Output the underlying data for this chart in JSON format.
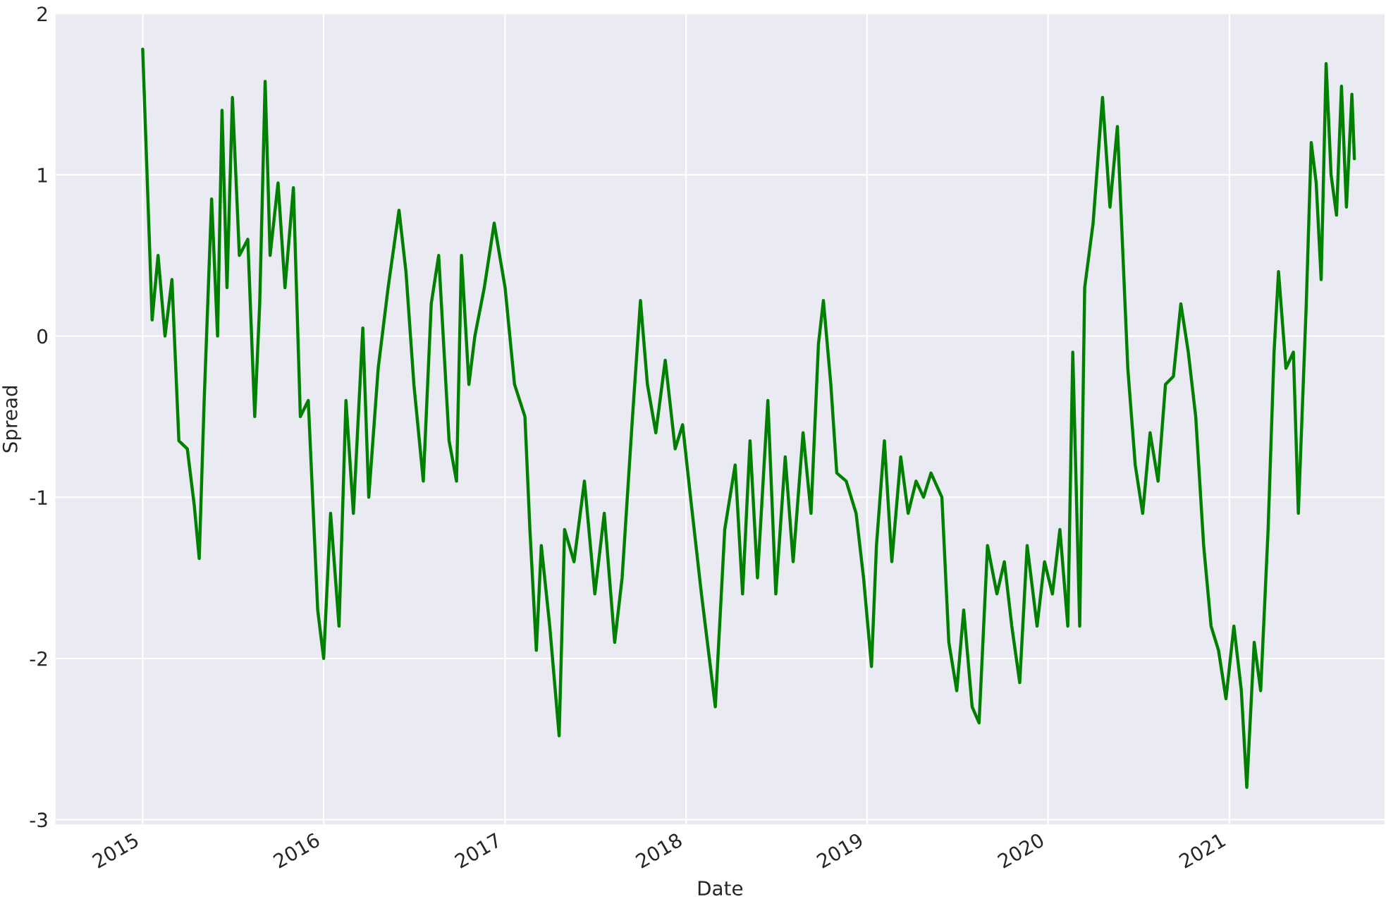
{
  "chart_data": {
    "type": "line",
    "xlabel": "Date",
    "ylabel": "Spread",
    "x": [
      "2015-01-01",
      "2015-01-20",
      "2015-02-01",
      "2015-02-15",
      "2015-03-01",
      "2015-03-15",
      "2015-04-01",
      "2015-04-15",
      "2015-04-25",
      "2015-05-05",
      "2015-05-20",
      "2015-06-01",
      "2015-06-10",
      "2015-06-20",
      "2015-07-01",
      "2015-07-15",
      "2015-08-01",
      "2015-08-15",
      "2015-08-25",
      "2015-09-05",
      "2015-09-15",
      "2015-10-01",
      "2015-10-15",
      "2015-11-01",
      "2015-11-15",
      "2015-12-01",
      "2015-12-20",
      "2016-01-01",
      "2016-01-15",
      "2016-02-01",
      "2016-02-15",
      "2016-03-01",
      "2016-03-20",
      "2016-04-01",
      "2016-04-20",
      "2016-05-10",
      "2016-06-01",
      "2016-06-15",
      "2016-07-01",
      "2016-07-20",
      "2016-08-05",
      "2016-08-20",
      "2016-09-10",
      "2016-09-25",
      "2016-10-05",
      "2016-10-20",
      "2016-11-01",
      "2016-11-20",
      "2016-12-10",
      "2017-01-01",
      "2017-01-20",
      "2017-02-10",
      "2017-02-20",
      "2017-03-05",
      "2017-03-15",
      "2017-04-01",
      "2017-04-20",
      "2017-05-01",
      "2017-05-20",
      "2017-06-10",
      "2017-07-01",
      "2017-07-20",
      "2017-08-10",
      "2017-08-25",
      "2017-09-15",
      "2017-10-01",
      "2017-10-15",
      "2017-11-01",
      "2017-11-20",
      "2017-12-10",
      "2017-12-25",
      "2018-01-10",
      "2018-02-01",
      "2018-03-01",
      "2018-03-20",
      "2018-04-10",
      "2018-04-25",
      "2018-05-10",
      "2018-05-25",
      "2018-06-15",
      "2018-07-01",
      "2018-07-20",
      "2018-08-05",
      "2018-08-25",
      "2018-09-10",
      "2018-09-25",
      "2018-10-05",
      "2018-10-20",
      "2018-11-01",
      "2018-11-20",
      "2018-12-10",
      "2018-12-25",
      "2019-01-10",
      "2019-01-20",
      "2019-02-05",
      "2019-02-20",
      "2019-03-10",
      "2019-03-25",
      "2019-04-10",
      "2019-04-25",
      "2019-05-10",
      "2019-06-01",
      "2019-06-15",
      "2019-07-01",
      "2019-07-15",
      "2019-08-01",
      "2019-08-15",
      "2019-09-01",
      "2019-09-20",
      "2019-10-05",
      "2019-10-20",
      "2019-11-05",
      "2019-11-20",
      "2019-12-10",
      "2019-12-25",
      "2020-01-10",
      "2020-01-25",
      "2020-02-10",
      "2020-02-20",
      "2020-03-05",
      "2020-03-15",
      "2020-04-01",
      "2020-04-20",
      "2020-05-05",
      "2020-05-20",
      "2020-06-10",
      "2020-06-25",
      "2020-07-10",
      "2020-07-25",
      "2020-08-10",
      "2020-08-25",
      "2020-09-10",
      "2020-09-25",
      "2020-10-10",
      "2020-10-25",
      "2020-11-10",
      "2020-11-25",
      "2020-12-10",
      "2020-12-25",
      "2021-01-10",
      "2021-01-25",
      "2021-02-05",
      "2021-02-20",
      "2021-03-05",
      "2021-03-20",
      "2021-04-01",
      "2021-04-10",
      "2021-04-25",
      "2021-05-10",
      "2021-05-20",
      "2021-06-05",
      "2021-06-15",
      "2021-06-25",
      "2021-07-05",
      "2021-07-15",
      "2021-07-25",
      "2021-08-05",
      "2021-08-15",
      "2021-08-25",
      "2021-09-05",
      "2021-09-10"
    ],
    "series": [
      {
        "color": "#008000",
        "values": [
          1.78,
          0.1,
          0.5,
          0.0,
          0.35,
          -0.65,
          -0.7,
          -1.05,
          -1.38,
          -0.4,
          0.85,
          0.0,
          1.4,
          0.3,
          1.48,
          0.5,
          0.6,
          -0.5,
          0.2,
          1.58,
          0.5,
          0.95,
          0.3,
          0.92,
          -0.5,
          -0.4,
          -1.7,
          -2.0,
          -1.1,
          -1.8,
          -0.4,
          -1.1,
          0.05,
          -1.0,
          -0.2,
          0.3,
          0.78,
          0.4,
          -0.3,
          -0.9,
          0.2,
          0.5,
          -0.65,
          -0.9,
          0.5,
          -0.3,
          0.0,
          0.3,
          0.7,
          0.3,
          -0.3,
          -0.5,
          -1.2,
          -1.95,
          -1.3,
          -1.8,
          -2.48,
          -1.2,
          -1.4,
          -0.9,
          -1.6,
          -1.1,
          -1.9,
          -1.5,
          -0.5,
          0.22,
          -0.3,
          -0.6,
          -0.15,
          -0.7,
          -0.55,
          -1.0,
          -1.6,
          -2.3,
          -1.2,
          -0.8,
          -1.6,
          -0.65,
          -1.5,
          -0.4,
          -1.6,
          -0.75,
          -1.4,
          -0.6,
          -1.1,
          -0.05,
          0.22,
          -0.3,
          -0.85,
          -0.9,
          -1.1,
          -1.5,
          -2.05,
          -1.3,
          -0.65,
          -1.4,
          -0.75,
          -1.1,
          -0.9,
          -1.0,
          -0.85,
          -1.0,
          -1.9,
          -2.2,
          -1.7,
          -2.3,
          -2.4,
          -1.3,
          -1.6,
          -1.4,
          -1.8,
          -2.15,
          -1.3,
          -1.8,
          -1.4,
          -1.6,
          -1.2,
          -1.8,
          -0.1,
          -1.8,
          0.3,
          0.7,
          1.48,
          0.8,
          1.3,
          -0.2,
          -0.8,
          -1.1,
          -0.6,
          -0.9,
          -0.3,
          -0.25,
          0.2,
          -0.1,
          -0.5,
          -1.3,
          -1.8,
          -1.95,
          -2.25,
          -1.8,
          -2.2,
          -2.8,
          -1.9,
          -2.2,
          -1.2,
          -0.1,
          0.4,
          -0.2,
          -0.1,
          -1.1,
          0.2,
          1.2,
          0.95,
          0.35,
          1.69,
          1.0,
          0.75,
          1.55,
          0.8,
          1.5,
          1.1
        ]
      }
    ],
    "xlim": [
      "2014-07-09",
      "2021-11-10"
    ],
    "xticks": [
      "2015",
      "2016",
      "2017",
      "2018",
      "2019",
      "2020",
      "2021"
    ],
    "ylim": [
      -3.03,
      2.0
    ],
    "yticks": [
      -3,
      -2,
      -1,
      0,
      1,
      2
    ],
    "grid": true,
    "marker": "none",
    "line_style": "solid"
  }
}
